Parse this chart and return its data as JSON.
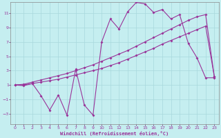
{
  "xlabel": "Windchill (Refroidissement éolien,°C)",
  "xlim": [
    -0.5,
    23.5
  ],
  "ylim": [
    -4.5,
    12.5
  ],
  "yticks": [
    -3,
    -1,
    1,
    3,
    5,
    7,
    9,
    11
  ],
  "xticks": [
    0,
    1,
    2,
    3,
    4,
    5,
    6,
    7,
    8,
    9,
    10,
    11,
    12,
    13,
    14,
    15,
    16,
    17,
    18,
    19,
    20,
    21,
    22,
    23
  ],
  "bg_color": "#c5eef0",
  "grid_color": "#a8d8dc",
  "line_color": "#993399",
  "wiggly_x": [
    0,
    1,
    2,
    3,
    4,
    5,
    6,
    7,
    8,
    9,
    10,
    11,
    12,
    13,
    14,
    15,
    16,
    17,
    18,
    19,
    20,
    21,
    22,
    23
  ],
  "wiggly_y": [
    1.0,
    0.9,
    1.2,
    -0.5,
    -2.5,
    -0.4,
    -3.2,
    3.2,
    -1.8,
    -3.2,
    7.0,
    10.2,
    8.8,
    11.2,
    12.5,
    12.3,
    11.1,
    11.5,
    10.2,
    10.8,
    6.8,
    4.8,
    2.0,
    2.0
  ],
  "upper_x": [
    0,
    1,
    2,
    3,
    4,
    5,
    6,
    7,
    8,
    9,
    10,
    11,
    12,
    13,
    14,
    15,
    16,
    17,
    18,
    19,
    20,
    21,
    22,
    23
  ],
  "upper_y": [
    1.0,
    1.1,
    1.4,
    1.7,
    2.0,
    2.3,
    2.6,
    3.0,
    3.4,
    3.8,
    4.3,
    4.8,
    5.3,
    5.8,
    6.4,
    7.0,
    7.6,
    8.2,
    8.8,
    9.4,
    10.0,
    10.5,
    10.8,
    2.2
  ],
  "lower_x": [
    0,
    1,
    2,
    3,
    4,
    5,
    6,
    7,
    8,
    9,
    10,
    11,
    12,
    13,
    14,
    15,
    16,
    17,
    18,
    19,
    20,
    21,
    22,
    23
  ],
  "lower_y": [
    1.0,
    1.0,
    1.2,
    1.4,
    1.6,
    1.8,
    2.1,
    2.4,
    2.7,
    3.0,
    3.3,
    3.7,
    4.1,
    4.6,
    5.1,
    5.6,
    6.1,
    6.7,
    7.2,
    7.7,
    8.2,
    8.7,
    9.2,
    2.2
  ]
}
